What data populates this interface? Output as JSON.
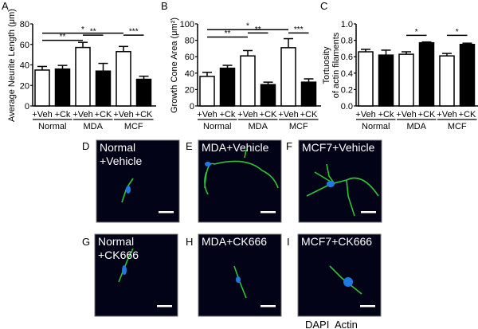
{
  "chart_data": [
    {
      "type": "bar",
      "panel_label": "A",
      "ylabel": "Average Neurite Length (μm)",
      "ylim": [
        0,
        80
      ],
      "yticks": [
        "0",
        "20",
        "40",
        "60",
        "80"
      ],
      "categories": [
        "+Veh",
        "+Ck",
        "+Veh",
        "+CK",
        "+Veh",
        "+CK"
      ],
      "groups": [
        "Normal",
        "MDA",
        "MCF"
      ],
      "values": [
        35,
        36,
        57,
        34,
        53,
        26
      ],
      "errors": [
        3.5,
        3.5,
        5,
        7.5,
        5,
        3
      ],
      "fill": [
        "#ffffff",
        "#000000",
        "#ffffff",
        "#000000",
        "#ffffff",
        "#000000"
      ],
      "significance": [
        {
          "from": 0,
          "to": 4,
          "y": 71,
          "label": "*"
        },
        {
          "from": 0,
          "to": 2,
          "y": 64,
          "label": "**"
        },
        {
          "from": 2,
          "to": 3,
          "y": 69,
          "label": "**"
        },
        {
          "from": 4,
          "to": 5,
          "y": 69,
          "label": "***"
        }
      ]
    },
    {
      "type": "bar",
      "panel_label": "B",
      "ylabel": "Growth Cone Area (μm²)",
      "ylim": [
        0,
        100
      ],
      "yticks": [
        "0",
        "20",
        "40",
        "60",
        "80",
        "100"
      ],
      "categories": [
        "+Veh",
        "+Ck",
        "+Veh",
        "+CK",
        "+Veh",
        "+CK"
      ],
      "groups": [
        "Normal",
        "MDA",
        "MCF"
      ],
      "values": [
        36,
        46,
        61,
        26,
        71,
        29
      ],
      "errors": [
        5,
        3.5,
        6.5,
        3,
        11,
        4
      ],
      "fill": [
        "#ffffff",
        "#000000",
        "#ffffff",
        "#000000",
        "#ffffff",
        "#000000"
      ],
      "significance": [
        {
          "from": 0,
          "to": 4,
          "y": 93,
          "label": "*"
        },
        {
          "from": 0,
          "to": 2,
          "y": 84,
          "label": "**"
        },
        {
          "from": 2,
          "to": 3,
          "y": 89,
          "label": "**"
        },
        {
          "from": 4,
          "to": 5,
          "y": 89,
          "label": "***"
        }
      ]
    },
    {
      "type": "bar",
      "panel_label": "C",
      "ylabel": [
        "Tortuosity",
        "of actin filaments"
      ],
      "ylim": [
        0,
        1.0
      ],
      "yticks": [
        "0.0",
        "0.2",
        "0.4",
        "0.6",
        "0.8",
        "1.0"
      ],
      "categories": [
        "+Veh",
        "+Ck",
        "+Veh",
        "+CK",
        "+Veh",
        "+CK"
      ],
      "groups": [
        "Normal",
        "MDA",
        "MCF"
      ],
      "values": [
        0.66,
        0.62,
        0.63,
        0.77,
        0.61,
        0.75
      ],
      "errors": [
        0.03,
        0.06,
        0.03,
        0.01,
        0.03,
        0.015
      ],
      "fill": [
        "#ffffff",
        "#000000",
        "#ffffff",
        "#000000",
        "#ffffff",
        "#000000"
      ],
      "significance": [
        {
          "from": 2,
          "to": 3,
          "y": 0.86,
          "label": "*"
        },
        {
          "from": 4,
          "to": 5,
          "y": 0.86,
          "label": "*"
        }
      ]
    }
  ],
  "micrographs": [
    {
      "panel_label": "D",
      "caption": [
        "Normal",
        "+Vehicle"
      ]
    },
    {
      "panel_label": "E",
      "caption": [
        "MDA+Vehicle"
      ]
    },
    {
      "panel_label": "F",
      "caption": [
        "MCF7+Vehicle"
      ]
    },
    {
      "panel_label": "G",
      "caption": [
        "Normal",
        "+CK666"
      ]
    },
    {
      "panel_label": "H",
      "caption": [
        "MDA+CK666"
      ]
    },
    {
      "panel_label": "I",
      "caption": [
        "MCF7+CK666"
      ]
    }
  ],
  "legend": {
    "dapi": "DAPI",
    "dapi_color": "#1a6fd6",
    "actin": "Actin",
    "actin_color": "#1fb23a"
  },
  "colors": {
    "image_bg": "#030318",
    "actin": "#2fc23a",
    "nucleus": "#1e7ae0"
  }
}
